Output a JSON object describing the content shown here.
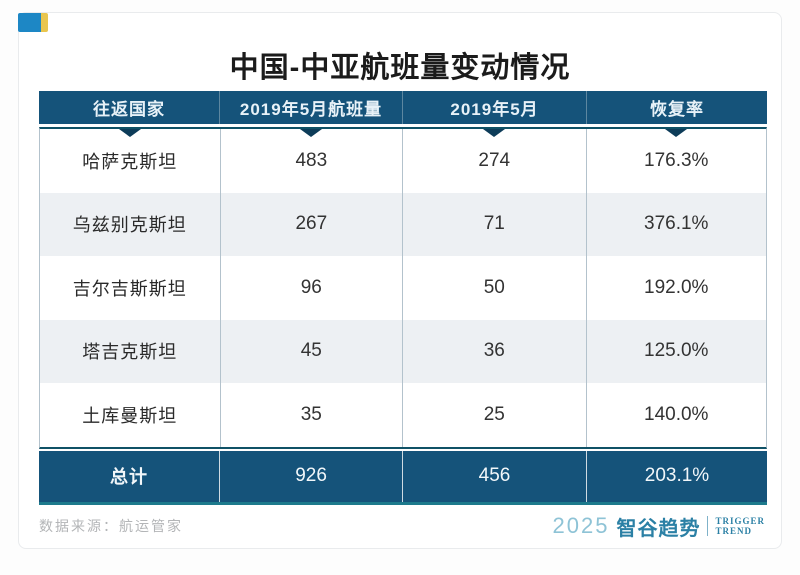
{
  "title": "中国-中亚航班量变动情况",
  "table": {
    "headers": [
      "往返国家",
      "2019年5月航班量",
      "2019年5月",
      "恢复率"
    ],
    "rows": [
      [
        "哈萨克斯坦",
        "483",
        "274",
        "176.3%"
      ],
      [
        "乌兹别克斯坦",
        "267",
        "71",
        "376.1%"
      ],
      [
        "吉尔吉斯斯坦",
        "96",
        "50",
        "192.0%"
      ],
      [
        "塔吉克斯坦",
        "45",
        "36",
        "125.0%"
      ],
      [
        "土库曼斯坦",
        "35",
        "25",
        "140.0%"
      ]
    ],
    "total": [
      "总计",
      "926",
      "456",
      "203.1%"
    ]
  },
  "footer": {
    "source": "数据来源：航运管家",
    "logo": {
      "year": "2025",
      "brand": "智谷趋势",
      "tagline_line1": "TRIGGER",
      "tagline_line2": "TREND"
    }
  },
  "colors": {
    "header_navy": "#15537a",
    "teal_border": "#0f5166",
    "total_bottom_teal": "#1d7a8c",
    "alt_row_gray": "#edf0f3",
    "divider_gray": "#b3c2cc",
    "badge_blue": "#1d87c5",
    "badge_yellow": "#e9c64f",
    "logo_teal": "#2b80a5",
    "logo_year_teal": "#8ec3d6"
  },
  "chart_data": {
    "type": "table",
    "title": "中国-中亚航班量变动情况",
    "columns": [
      "往返国家",
      "2019年5月航班量",
      "2019年5月",
      "恢复率"
    ],
    "rows": [
      [
        "哈萨克斯坦",
        483,
        274,
        "176.3%"
      ],
      [
        "乌兹别克斯坦",
        267,
        71,
        "376.1%"
      ],
      [
        "吉尔吉斯斯坦",
        96,
        50,
        "192.0%"
      ],
      [
        "塔吉克斯坦",
        45,
        36,
        "125.0%"
      ],
      [
        "土库曼斯坦",
        35,
        25,
        "140.0%"
      ]
    ],
    "total_row": [
      "总计",
      926,
      456,
      "203.1%"
    ],
    "source_note": "数据来源：航运管家"
  }
}
